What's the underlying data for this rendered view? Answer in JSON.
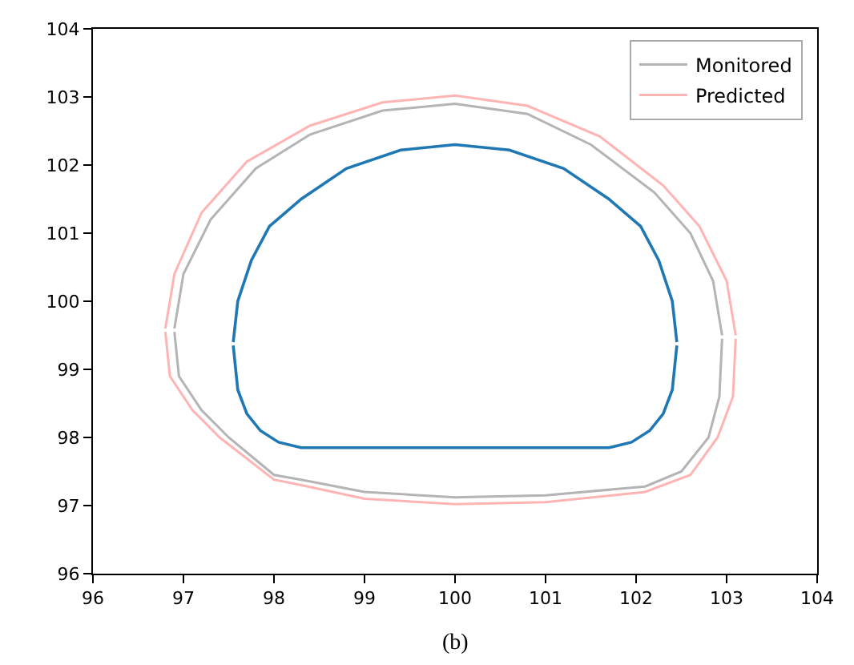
{
  "chart_data": {
    "type": "line",
    "xlim": [
      96,
      104
    ],
    "ylim": [
      96,
      104
    ],
    "xticks": [
      96,
      97,
      98,
      99,
      100,
      101,
      102,
      103,
      104
    ],
    "yticks": [
      96,
      97,
      98,
      99,
      100,
      101,
      102,
      103,
      104
    ],
    "legend": "top right",
    "annotations": [
      "(b)"
    ],
    "series": [
      {
        "name": "Monitored",
        "color": "#b4b4b4",
        "x": [
          96.9,
          97.0,
          97.3,
          97.8,
          98.4,
          99.2,
          100,
          100.8,
          101.5,
          102.2,
          102.6,
          102.85,
          102.95
        ],
        "values": [
          99.6,
          100.4,
          101.2,
          101.95,
          102.45,
          102.8,
          102.9,
          102.75,
          102.3,
          101.6,
          101.0,
          100.3,
          99.5
        ]
      },
      {
        "color": "#b4b4b4",
        "x": [
          96.9,
          96.95,
          97.2,
          97.5,
          98.0,
          98.3,
          99,
          100,
          101,
          102.1,
          102.5,
          102.8,
          102.92,
          102.95
        ],
        "values": [
          99.55,
          98.9,
          98.4,
          98.0,
          97.45,
          97.38,
          97.2,
          97.12,
          97.15,
          97.28,
          97.5,
          98.0,
          98.6,
          99.45
        ]
      },
      {
        "name": "Predicted",
        "color": "#ffb4b4",
        "x": [
          96.8,
          96.9,
          97.2,
          97.7,
          98.4,
          99.2,
          100,
          100.8,
          101.6,
          102.3,
          102.7,
          103.0,
          103.1
        ],
        "values": [
          99.6,
          100.4,
          101.3,
          102.05,
          102.58,
          102.92,
          103.02,
          102.87,
          102.42,
          101.7,
          101.1,
          100.3,
          99.5
        ]
      },
      {
        "color": "#ffb4b4",
        "x": [
          96.8,
          96.85,
          97.1,
          97.4,
          98.0,
          98.3,
          99,
          100,
          101,
          102.1,
          102.6,
          102.9,
          103.07,
          103.1
        ],
        "values": [
          99.55,
          98.9,
          98.4,
          98.0,
          97.38,
          97.3,
          97.1,
          97.02,
          97.05,
          97.2,
          97.45,
          98.0,
          98.6,
          99.45
        ]
      },
      {
        "color": "#1f77b4",
        "x": [
          97.55,
          97.6,
          97.75,
          97.95,
          98.3,
          98.8,
          99.4,
          100,
          100.6,
          101.2,
          101.7,
          102.05,
          102.25,
          102.4,
          102.45
        ],
        "values": [
          99.4,
          100.0,
          100.6,
          101.1,
          101.5,
          101.95,
          102.22,
          102.3,
          102.22,
          101.95,
          101.5,
          101.1,
          100.6,
          100.0,
          99.4
        ]
      },
      {
        "color": "#1f77b4",
        "x": [
          97.55,
          97.6,
          97.7,
          97.85,
          98.05,
          98.3,
          101.7,
          101.95,
          102.15,
          102.3,
          102.4,
          102.45
        ],
        "values": [
          99.35,
          98.7,
          98.35,
          98.1,
          97.93,
          97.85,
          97.85,
          97.93,
          98.1,
          98.35,
          98.7,
          99.35
        ]
      }
    ]
  }
}
